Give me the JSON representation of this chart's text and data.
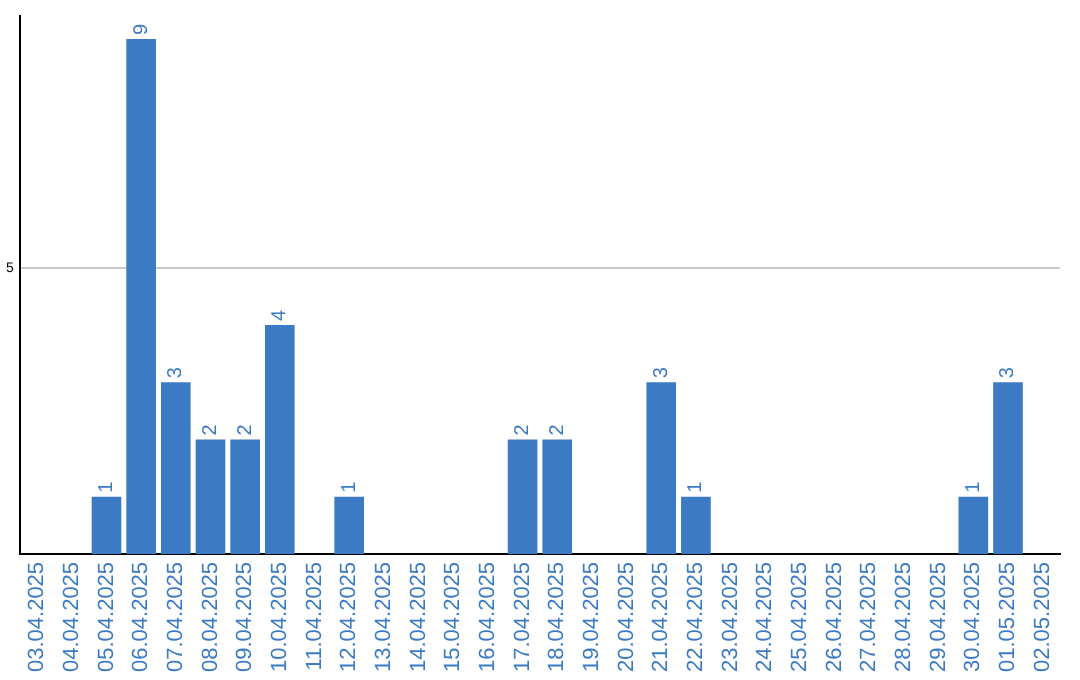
{
  "chart_data": {
    "type": "bar",
    "categories": [
      "03.04.2025",
      "04.04.2025",
      "05.04.2025",
      "06.04.2025",
      "07.04.2025",
      "08.04.2025",
      "09.04.2025",
      "10.04.2025",
      "11.04.2025",
      "12.04.2025",
      "13.04.2025",
      "14.04.2025",
      "15.04.2025",
      "16.04.2025",
      "17.04.2025",
      "18.04.2025",
      "19.04.2025",
      "20.04.2025",
      "21.04.2025",
      "22.04.2025",
      "23.04.2025",
      "24.04.2025",
      "25.04.2025",
      "26.04.2025",
      "27.04.2025",
      "28.04.2025",
      "29.04.2025",
      "30.04.2025",
      "01.05.2025",
      "02.05.2025"
    ],
    "values": [
      0,
      0,
      1,
      9,
      3,
      2,
      2,
      4,
      0,
      1,
      0,
      0,
      0,
      0,
      2,
      2,
      0,
      0,
      3,
      1,
      0,
      0,
      0,
      0,
      0,
      0,
      0,
      1,
      3,
      0
    ],
    "value_labels": [
      null,
      null,
      "1",
      "9",
      "3",
      "2",
      "2",
      "4",
      null,
      "1",
      null,
      null,
      null,
      null,
      "2",
      "2",
      null,
      null,
      "3",
      "1",
      null,
      null,
      null,
      null,
      null,
      null,
      null,
      "1",
      "3",
      null
    ],
    "color": "#3c7bc3",
    "ylim": [
      0,
      9.4
    ],
    "yticks": [
      5
    ],
    "grid": "y",
    "legend": false
  }
}
